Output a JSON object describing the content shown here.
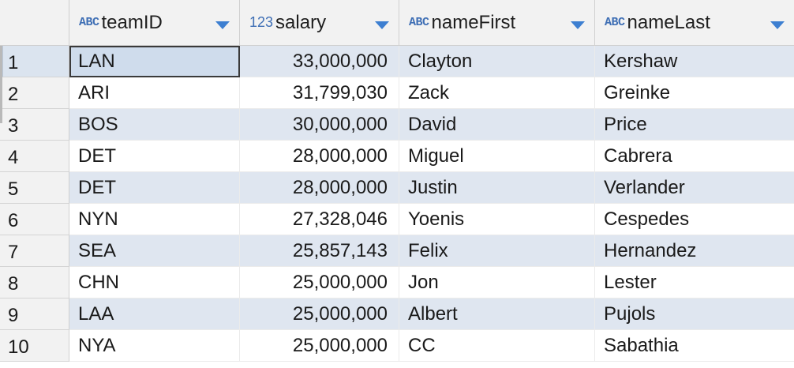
{
  "columns": [
    {
      "type_icon": "ABC",
      "name": "teamID"
    },
    {
      "type_icon": "123",
      "name": "salary"
    },
    {
      "type_icon": "ABC",
      "name": "nameFirst"
    },
    {
      "type_icon": "ABC",
      "name": "nameLast"
    }
  ],
  "rows": [
    {
      "num": "1",
      "teamID": "LAN",
      "salary": "33,000,000",
      "nameFirst": "Clayton",
      "nameLast": "Kershaw"
    },
    {
      "num": "2",
      "teamID": "ARI",
      "salary": "31,799,030",
      "nameFirst": "Zack",
      "nameLast": "Greinke"
    },
    {
      "num": "3",
      "teamID": "BOS",
      "salary": "30,000,000",
      "nameFirst": "David",
      "nameLast": "Price"
    },
    {
      "num": "4",
      "teamID": "DET",
      "salary": "28,000,000",
      "nameFirst": "Miguel",
      "nameLast": "Cabrera"
    },
    {
      "num": "5",
      "teamID": "DET",
      "salary": "28,000,000",
      "nameFirst": "Justin",
      "nameLast": "Verlander"
    },
    {
      "num": "6",
      "teamID": "NYN",
      "salary": "27,328,046",
      "nameFirst": "Yoenis",
      "nameLast": "Cespedes"
    },
    {
      "num": "7",
      "teamID": "SEA",
      "salary": "25,857,143",
      "nameFirst": "Felix",
      "nameLast": "Hernandez"
    },
    {
      "num": "8",
      "teamID": "CHN",
      "salary": "25,000,000",
      "nameFirst": "Jon",
      "nameLast": "Lester"
    },
    {
      "num": "9",
      "teamID": "LAA",
      "salary": "25,000,000",
      "nameFirst": "Albert",
      "nameLast": "Pujols"
    },
    {
      "num": "10",
      "teamID": "NYA",
      "salary": "25,000,000",
      "nameFirst": "CC",
      "nameLast": "Sabathia"
    }
  ],
  "selected_row": "1",
  "active_cell": {
    "row": "1",
    "column": "teamID"
  },
  "colors": {
    "band": "#dfe6f0",
    "type_icon": "#3f6fb5",
    "sort_arrow": "#3d7fd1",
    "header_bg": "#f2f2f2"
  },
  "icons": {
    "column_menu": "chevron-down-icon"
  }
}
